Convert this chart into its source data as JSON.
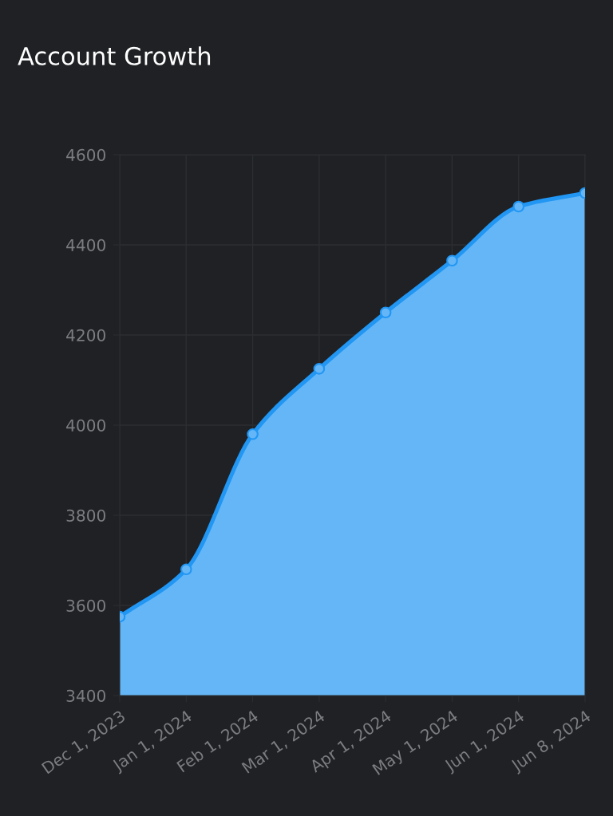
{
  "chart_data": {
    "type": "area",
    "title": "Account Growth",
    "categories": [
      "Dec 1, 2023",
      "Jan 1, 2024",
      "Feb 1, 2024",
      "Mar 1, 2024",
      "Apr 1, 2024",
      "May 1, 2024",
      "Jun 1, 2024",
      "Jun 8, 2024"
    ],
    "series": [
      {
        "color": "#2196f3",
        "values": [
          3575,
          3680,
          3980,
          4125,
          4250,
          4365,
          4485,
          4515
        ]
      }
    ],
    "ylim": [
      3400,
      4600
    ],
    "yticks": [
      3400,
      3600,
      3800,
      4000,
      4200,
      4400,
      4600
    ],
    "grid": true,
    "marker": "circle",
    "line_style": "solid"
  }
}
